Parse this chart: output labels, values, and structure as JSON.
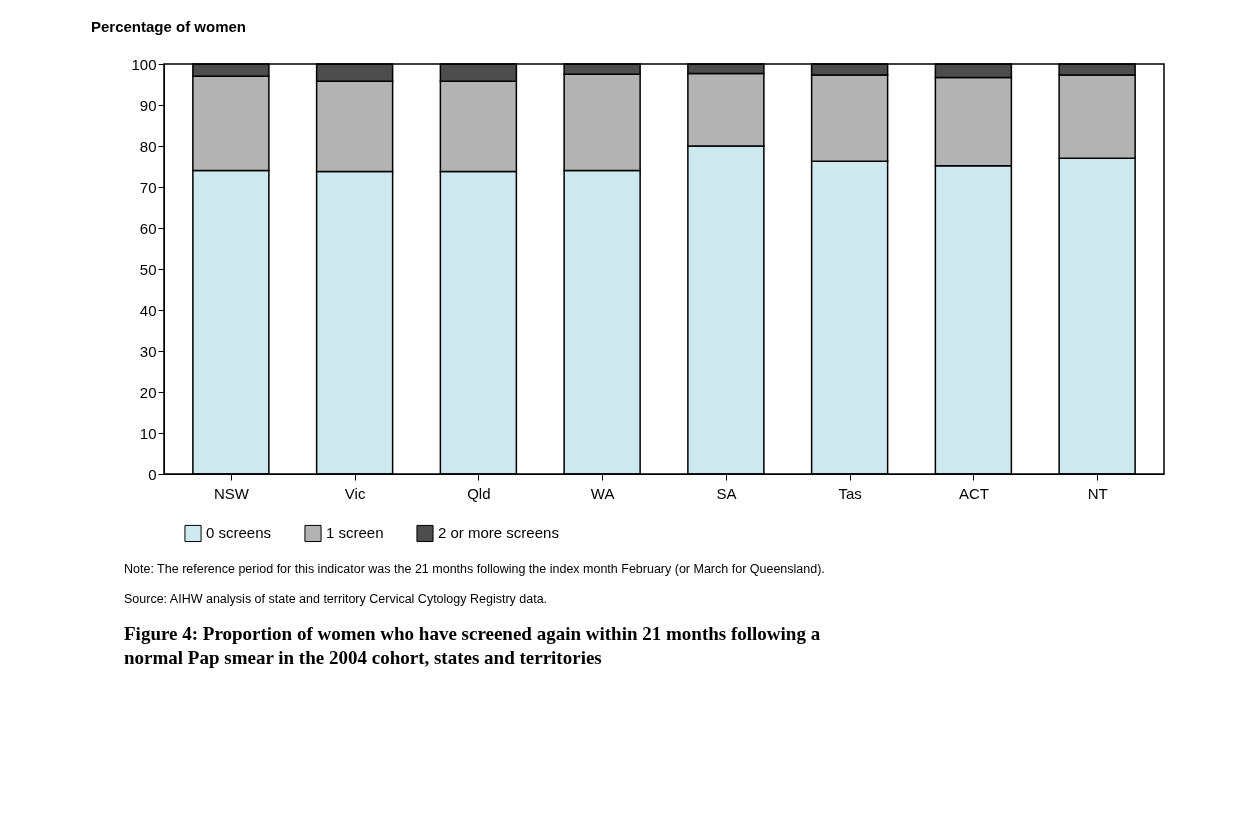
{
  "chart_data": {
    "type": "bar",
    "stacked": true,
    "title": "Figure 4: Proportion of women who have screened again within 21 months following a normal Pap smear in the 2004 cohort, states and territories",
    "ylabel": "Percentage of women",
    "categories": [
      "NSW",
      "Vic",
      "Qld",
      "WA",
      "SA",
      "Tas",
      "ACT",
      "NT"
    ],
    "series": [
      {
        "name": "0 screens",
        "color": "#cde9ef",
        "values": [
          74.0,
          73.8,
          73.8,
          74.0,
          80.0,
          76.3,
          75.2,
          77.0
        ]
      },
      {
        "name": "1 screen",
        "color": "#b3b3b3",
        "values": [
          23.0,
          22.0,
          22.0,
          23.5,
          17.7,
          21.0,
          21.5,
          20.3
        ]
      },
      {
        "name": "2 or more screens",
        "color": "#4d4d4d",
        "values": [
          3.0,
          4.2,
          4.2,
          2.5,
          2.3,
          2.7,
          3.3,
          2.7
        ]
      }
    ],
    "ylim": [
      0,
      100
    ],
    "yticks": [
      0,
      10,
      20,
      30,
      40,
      50,
      60,
      70,
      80,
      90,
      100
    ],
    "grid": false,
    "legend": "bottom",
    "annotations": [
      "Note: The reference period for this indicator was the 21 months following the index month February (or March for Queensland).",
      "Source: AIHW analysis of state and territory Cervical Cytology Registry data."
    ]
  }
}
